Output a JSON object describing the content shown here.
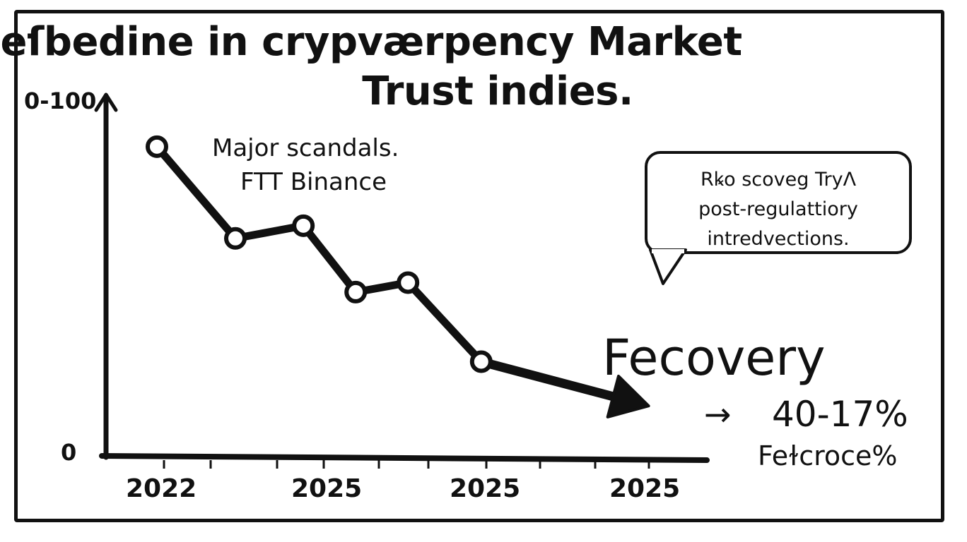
{
  "title": {
    "line1": "Beſbedine in crypværpency Market",
    "line2": "Trust indies."
  },
  "chart_data": {
    "type": "line",
    "x": [
      "2022",
      "",
      "",
      "2025",
      "",
      "",
      "2025",
      "",
      "",
      "2025",
      ""
    ],
    "xtick_labels": [
      "2022",
      "2025",
      "2025",
      "2025"
    ],
    "ytick_labels": [
      "0-100",
      "0"
    ],
    "ylim": [
      0,
      100
    ],
    "points": [
      {
        "x": 0,
        "y": 92
      },
      {
        "x": 15,
        "y": 63
      },
      {
        "x": 28,
        "y": 67
      },
      {
        "x": 38,
        "y": 46
      },
      {
        "x": 48,
        "y": 49
      },
      {
        "x": 62,
        "y": 24
      }
    ],
    "arrow_to": {
      "x": 94,
      "y": 10
    },
    "grid": false,
    "legend": "none",
    "line_color": "#111111",
    "annotations": {
      "scandals_line1": "Major  scandals.",
      "scandals_line2": "FTT Binance",
      "bubble_line1": "Rꝃo scoveg TryΛ",
      "bubble_line2": "post-regulattiory",
      "bubble_line3": "intredvections.",
      "recovery_label": "Fecovery",
      "recovery_arrow": "→",
      "recovery_value": "40-17%",
      "recovery_sublabel": "Feɫcroce%"
    }
  }
}
